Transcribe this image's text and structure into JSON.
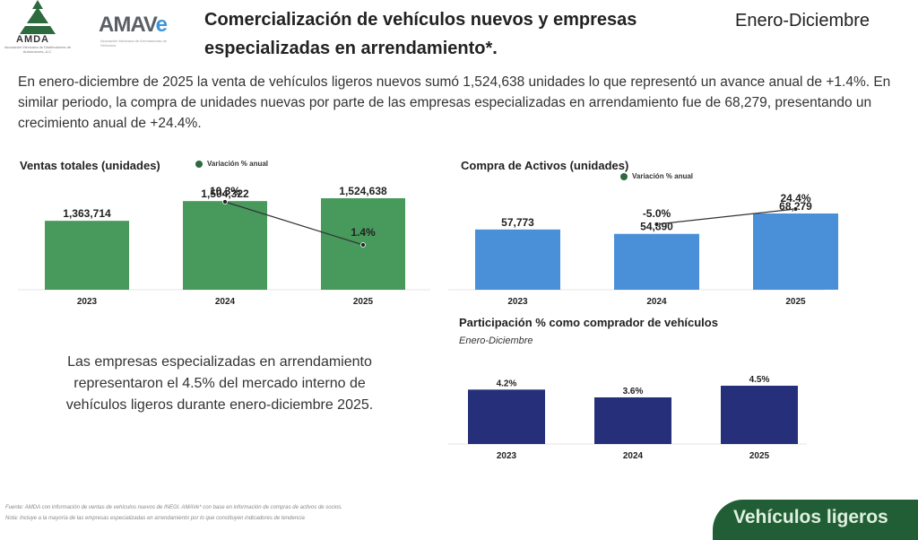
{
  "header": {
    "logo_amda": "AMDA",
    "logo_amda_sub": "Asociación Mexicana de Distribuidores de Automotores, A.C.",
    "logo_amave_main": "AMAV",
    "logo_amave_e": "e",
    "logo_amave_sub": "Asociación Mexicana de Arrendadoras de Vehículos",
    "title": "Comercialización de vehículos nuevos y empresas especializadas en arrendamiento*.",
    "period": "Enero-Diciembre"
  },
  "intro": "En enero-diciembre de 2025 la venta de vehículos ligeros nuevos sumó 1,524,638 unidades lo que representó un avance anual de +1.4%. En similar periodo, la compra de unidades nuevas por parte de las empresas especializadas en arrendamiento fue de 68,279, presentando un crecimiento anual de +24.4%.",
  "callout": "Las empresas especializadas en arrendamiento representaron el 4.5% del mercado interno de vehículos ligeros durante enero-diciembre 2025.",
  "footnotes": {
    "source": "Fuente: AMDA con información de ventas de vehículos nuevos de INEGI. AMAVe* con base en información de compras de activos de socios.",
    "note": "Nota: Incluye a la mayoría de las empresas especializadas en arrendamiento por lo que constituyen indicadores de tendencia"
  },
  "section_tab": "Vehículos ligeros",
  "colors": {
    "green": "#479a5c",
    "blue": "#4a90d9",
    "navy": "#26307a",
    "dark_green": "#225e35"
  },
  "chart_data": [
    {
      "type": "bar",
      "title": "Ventas totales (unidades)",
      "legend": "Variación % anual",
      "categories": [
        "2023",
        "2024",
        "2025"
      ],
      "values": [
        1363714,
        1504322,
        1524638
      ],
      "value_labels": [
        "1,363,714",
        "1,504,322",
        "1,524,638"
      ],
      "line_series": {
        "name": "Variación % anual",
        "categories": [
          "2024",
          "2025"
        ],
        "values": [
          10.3,
          1.4
        ],
        "labels": [
          "10.3%",
          "1.4%"
        ]
      },
      "color": "#479a5c"
    },
    {
      "type": "bar",
      "title": "Compra de Activos (unidades)",
      "legend": "Variación % anual",
      "categories": [
        "2023",
        "2024",
        "2025"
      ],
      "values": [
        57773,
        54890,
        68279
      ],
      "value_labels": [
        "57,773",
        "54,890",
        "68,279"
      ],
      "line_series": {
        "name": "Variación % anual",
        "categories": [
          "2024",
          "2025"
        ],
        "values": [
          -5.0,
          24.4
        ],
        "labels": [
          "-5.0%",
          "24.4%"
        ]
      },
      "color": "#4a90d9"
    },
    {
      "type": "bar",
      "title": "Participación % como comprador de vehículos",
      "subtitle": "Enero-Diciembre",
      "categories": [
        "2023",
        "2024",
        "2025"
      ],
      "values": [
        4.2,
        3.6,
        4.5
      ],
      "value_labels": [
        "4.2%",
        "3.6%",
        "4.5%"
      ],
      "color": "#26307a"
    }
  ]
}
